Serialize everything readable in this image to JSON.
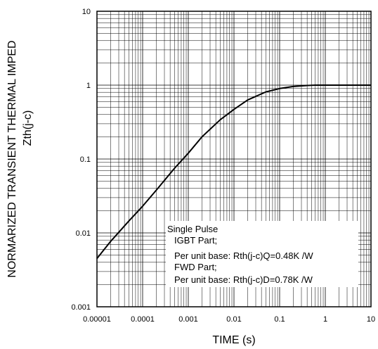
{
  "chart_data": {
    "type": "line",
    "title": "",
    "xlabel": "TIME (s)",
    "ylabel_line1": "NORMARIZED TRANSIENT THERMAL IMPED",
    "ylabel_line2": "Zth(j-c)",
    "x_scale": "log",
    "y_scale": "log",
    "xlim": [
      1e-05,
      10
    ],
    "ylim": [
      0.001,
      10
    ],
    "grid": true,
    "x_ticks": [
      "0.00001",
      "0.0001",
      "0.001",
      "0.01",
      "0.1",
      "1",
      "10"
    ],
    "y_ticks": [
      "0.001",
      "0.01",
      "0.1",
      "1",
      "10"
    ],
    "series": [
      {
        "x": [
          1e-05,
          2e-05,
          5e-05,
          0.0001,
          0.0002,
          0.0005,
          0.001,
          0.002,
          0.005,
          0.01,
          0.02,
          0.05,
          0.1,
          0.2,
          0.4,
          0.6,
          1,
          10
        ],
        "y": [
          0.0045,
          0.0077,
          0.0145,
          0.023,
          0.038,
          0.075,
          0.12,
          0.2,
          0.34,
          0.47,
          0.63,
          0.81,
          0.9,
          0.96,
          0.99,
          1.0,
          1.0,
          1.0
        ]
      }
    ],
    "annotation": [
      "Single Pulse",
      "IGBT Part;",
      "Per unit base: Rth(j-c)Q=0.48K /W",
      "FWD Part;",
      "Per unit base: Rth(j-c)D=0.78K /W"
    ]
  }
}
